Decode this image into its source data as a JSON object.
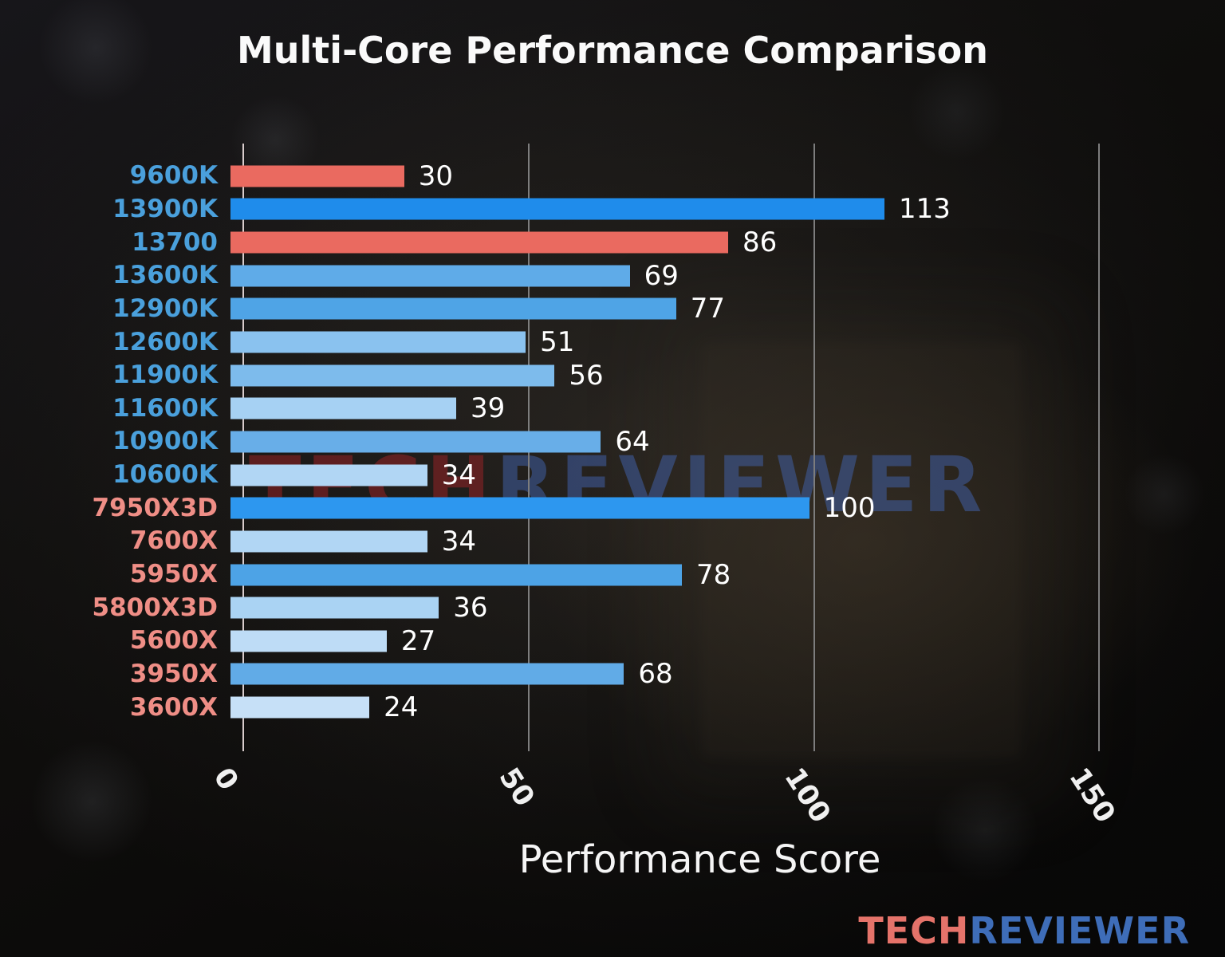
{
  "title": "Multi-Core Performance Comparison",
  "watermark": {
    "tech": "TECH",
    "reviewer": "REVIEWER"
  },
  "brand": {
    "tech": "TECH",
    "reviewer": "REVIEWER"
  },
  "colors": {
    "highlight_red": "#ea6a60",
    "strong_blue": "#1f8ceb",
    "intel_label_blue": "#4aa0dc",
    "amd_label_salmon": "#ef8e86",
    "gridline_gray": "#7d7d7d",
    "value_label_white": "#ffffff"
  },
  "chart_data": {
    "type": "bar",
    "orientation": "horizontal",
    "title": "Multi-Core Performance Comparison",
    "xlabel": "Performance Score",
    "xlim": [
      0,
      160
    ],
    "xticks": [
      0,
      50,
      100,
      150
    ],
    "grid": "vertical gridlines at xticks, left spine visible",
    "legend": "none",
    "categories": [
      "9600K",
      "13900K",
      "13700",
      "13600K",
      "12900K",
      "12600K",
      "11900K",
      "11600K",
      "10900K",
      "10600K",
      "7950X3D",
      "7600X",
      "5950X",
      "5800X3D",
      "5600X",
      "3950X",
      "3600X"
    ],
    "values": [
      30,
      113,
      86,
      69,
      77,
      51,
      56,
      39,
      64,
      34,
      100,
      34,
      78,
      36,
      27,
      68,
      24
    ],
    "bar_colors": [
      "#ea6a60",
      "#1f8ceb",
      "#ea6a60",
      "#5fabe8",
      "#4fa4e6",
      "#8ac2ef",
      "#7dbbec",
      "#a6d1f3",
      "#68aee8",
      "#b1d6f4",
      "#2d97ef",
      "#b1d6f4",
      "#4da3e6",
      "#aad3f3",
      "#bedcf6",
      "#61abe7",
      "#c6e0f7"
    ],
    "label_colors": [
      "#4aa0dc",
      "#4aa0dc",
      "#4aa0dc",
      "#4aa0dc",
      "#4aa0dc",
      "#4aa0dc",
      "#4aa0dc",
      "#4aa0dc",
      "#4aa0dc",
      "#4aa0dc",
      "#ef8e86",
      "#ef8e86",
      "#ef8e86",
      "#ef8e86",
      "#ef8e86",
      "#ef8e86",
      "#ef8e86"
    ]
  }
}
